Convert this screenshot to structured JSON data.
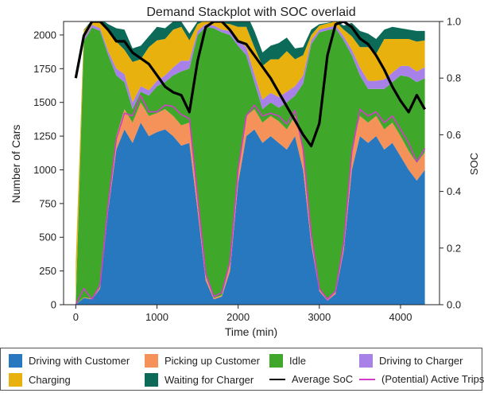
{
  "chart_data": {
    "type": "area",
    "title": "Demand Stackplot with SOC overlaid",
    "xlabel": "Time (min)",
    "ylabel": "Number of Cars",
    "y2label": "SOC",
    "xlim": [
      -150,
      4480
    ],
    "ylim": [
      0,
      2100
    ],
    "y2lim": [
      0.0,
      1.0
    ],
    "xticks": [
      "0",
      "1000",
      "2000",
      "3000",
      "4000"
    ],
    "yticks": [
      "0",
      "250",
      "500",
      "750",
      "1000",
      "1250",
      "1500",
      "1750",
      "2000"
    ],
    "y2ticks": [
      "0.0",
      "0.2",
      "0.4",
      "0.6",
      "0.8",
      "1.0"
    ],
    "x": [
      0,
      100,
      200,
      300,
      400,
      500,
      600,
      700,
      800,
      900,
      1000,
      1100,
      1200,
      1300,
      1400,
      1500,
      1600,
      1700,
      1800,
      1900,
      2000,
      2100,
      2200,
      2300,
      2400,
      2500,
      2600,
      2700,
      2800,
      2900,
      3000,
      3100,
      3200,
      3300,
      3400,
      3500,
      3600,
      3700,
      3800,
      3900,
      4000,
      4100,
      4200,
      4300
    ],
    "series": [
      {
        "name": "Driving with Customer",
        "color": "#2878c0",
        "values": [
          0,
          50,
          40,
          120,
          700,
          1150,
          1300,
          1200,
          1350,
          1250,
          1280,
          1300,
          1250,
          1180,
          1200,
          700,
          180,
          40,
          60,
          250,
          900,
          1250,
          1300,
          1200,
          1250,
          1200,
          1150,
          1250,
          1000,
          450,
          100,
          30,
          80,
          400,
          1000,
          1250,
          1200,
          1250,
          1150,
          1200,
          1100,
          1000,
          920,
          1000
        ]
      },
      {
        "name": "Picking up Customer",
        "color": "#f4925a",
        "values": [
          0,
          5,
          5,
          10,
          50,
          100,
          150,
          150,
          150,
          150,
          140,
          150,
          150,
          150,
          150,
          100,
          30,
          10,
          10,
          50,
          120,
          150,
          150,
          150,
          150,
          160,
          150,
          150,
          140,
          80,
          20,
          5,
          20,
          60,
          150,
          150,
          150,
          150,
          150,
          150,
          150,
          140,
          130,
          130
        ]
      },
      {
        "name": "Idle",
        "color": "#3fa82a",
        "values": [
          0,
          1900,
          2010,
          1900,
          1100,
          450,
          200,
          100,
          80,
          150,
          200,
          200,
          300,
          400,
          400,
          1200,
          1850,
          2000,
          1950,
          1700,
          900,
          450,
          200,
          100,
          100,
          100,
          200,
          150,
          500,
          1400,
          1900,
          2000,
          1950,
          1500,
          700,
          300,
          250,
          200,
          300,
          300,
          450,
          550,
          600,
          550
        ]
      },
      {
        "name": "Driving to Charger",
        "color": "#a781e8",
        "values": [
          10,
          20,
          20,
          20,
          30,
          50,
          60,
          50,
          40,
          40,
          40,
          50,
          60,
          80,
          60,
          30,
          20,
          20,
          20,
          30,
          40,
          60,
          60,
          70,
          70,
          80,
          80,
          70,
          60,
          30,
          20,
          20,
          20,
          30,
          40,
          60,
          60,
          60,
          70,
          70,
          70,
          80,
          80,
          80
        ]
      },
      {
        "name": "Charging",
        "color": "#e8b10e",
        "values": [
          300,
          60,
          30,
          60,
          150,
          200,
          180,
          300,
          200,
          320,
          300,
          270,
          280,
          250,
          150,
          50,
          30,
          30,
          50,
          50,
          100,
          150,
          200,
          250,
          250,
          280,
          300,
          200,
          150,
          40,
          30,
          30,
          30,
          50,
          100,
          150,
          250,
          200,
          300,
          250,
          200,
          200,
          220,
          200
        ]
      },
      {
        "name": "Waiting for Charger",
        "color": "#0b6b58",
        "values": [
          0,
          5,
          5,
          10,
          50,
          100,
          150,
          100,
          100,
          80,
          100,
          80,
          60,
          40,
          50,
          20,
          10,
          10,
          10,
          20,
          80,
          100,
          120,
          100,
          100,
          120,
          100,
          80,
          60,
          40,
          10,
          5,
          5,
          30,
          100,
          120,
          100,
          110,
          70,
          90,
          80,
          70,
          80,
          70
        ]
      },
      {
        "name": "(Potential) Active Trips",
        "color": "#d23cc8",
        "type": "line",
        "values": [
          0,
          120,
          40,
          150,
          750,
          1230,
          1420,
          1400,
          1550,
          1430,
          1430,
          1480,
          1470,
          1410,
          1380,
          800,
          230,
          60,
          90,
          320,
          1000,
          1400,
          1480,
          1400,
          1420,
          1400,
          1340,
          1440,
          1150,
          520,
          120,
          40,
          100,
          460,
          1130,
          1450,
          1400,
          1430,
          1350,
          1400,
          1300,
          1200,
          1060,
          1160
        ]
      },
      {
        "name": "Average SoC",
        "color": "#000000",
        "type": "line",
        "axis": "y2",
        "values": [
          0.8,
          0.95,
          1.0,
          1.0,
          0.97,
          0.93,
          0.93,
          0.89,
          0.87,
          0.85,
          0.81,
          0.77,
          0.75,
          0.74,
          0.68,
          0.86,
          0.98,
          1.0,
          1.0,
          0.97,
          0.93,
          0.92,
          0.88,
          0.84,
          0.8,
          0.75,
          0.7,
          0.65,
          0.6,
          0.56,
          0.64,
          0.88,
          0.99,
          1.0,
          0.98,
          0.94,
          0.92,
          0.88,
          0.83,
          0.77,
          0.72,
          0.68,
          0.74,
          0.69
        ]
      }
    ],
    "legend_position": "bottom",
    "grid": false
  }
}
